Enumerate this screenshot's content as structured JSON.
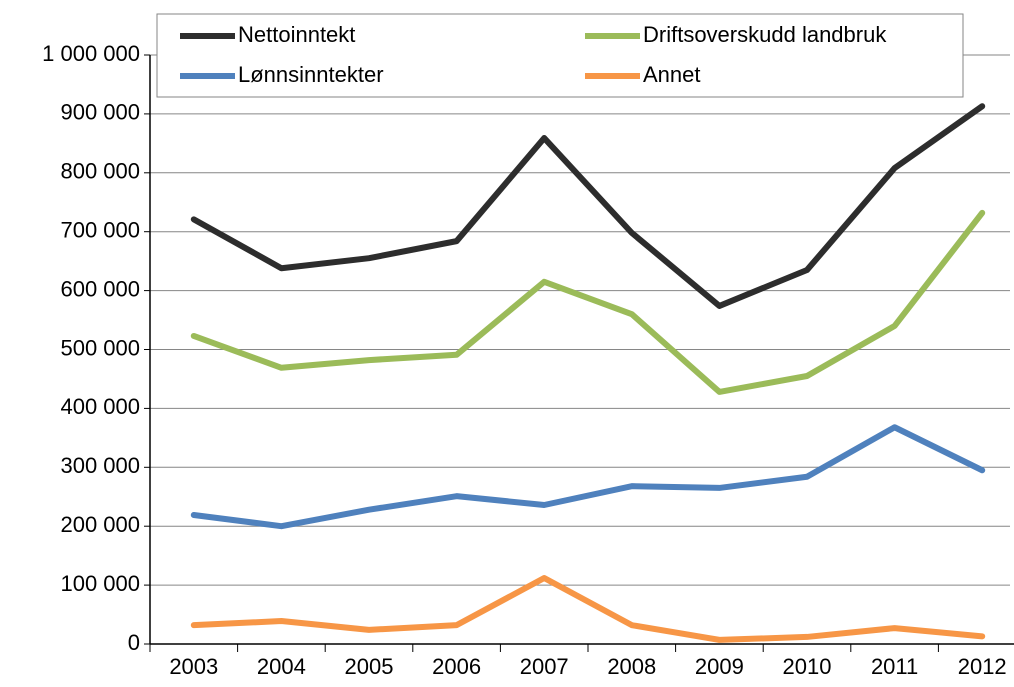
{
  "chart_data": {
    "type": "line",
    "categories": [
      "2003",
      "2004",
      "2005",
      "2006",
      "2007",
      "2008",
      "2009",
      "2010",
      "2011",
      "2012"
    ],
    "series": [
      {
        "name": "Nettoinntekt",
        "color": "#2d2d2d",
        "values": [
          721000,
          638000,
          655000,
          684000,
          859000,
          698000,
          574000,
          635000,
          808000,
          913000
        ]
      },
      {
        "name": "Driftsoverskudd landbruk",
        "color": "#9bbb59",
        "values": [
          523000,
          469000,
          482000,
          491000,
          615000,
          560000,
          428000,
          455000,
          540000,
          732000
        ]
      },
      {
        "name": "Lønnsinntekter",
        "color": "#4f81bd",
        "values": [
          219000,
          200000,
          228000,
          251000,
          236000,
          268000,
          265000,
          284000,
          368000,
          295000
        ]
      },
      {
        "name": "Annet",
        "color": "#f79646",
        "values": [
          32000,
          39000,
          24000,
          32000,
          112000,
          32000,
          7000,
          12000,
          27000,
          13000
        ]
      }
    ],
    "ylim": [
      0,
      1000000
    ],
    "yticks": [
      0,
      {
        "value": 100000,
        "label": "100 000"
      },
      {
        "value": 200000,
        "label": "200 000"
      },
      {
        "value": 300000,
        "label": "300 000"
      },
      {
        "value": 400000,
        "label": "400 000"
      },
      {
        "value": 500000,
        "label": "500 000"
      },
      {
        "value": 600000,
        "label": "600 000"
      },
      {
        "value": 700000,
        "label": "700 000"
      },
      {
        "value": 800000,
        "label": "800 000"
      },
      {
        "value": 900000,
        "label": "900 000"
      },
      {
        "value": 1000000,
        "label": "1 000 000"
      }
    ],
    "grid": true,
    "legend": "top"
  }
}
